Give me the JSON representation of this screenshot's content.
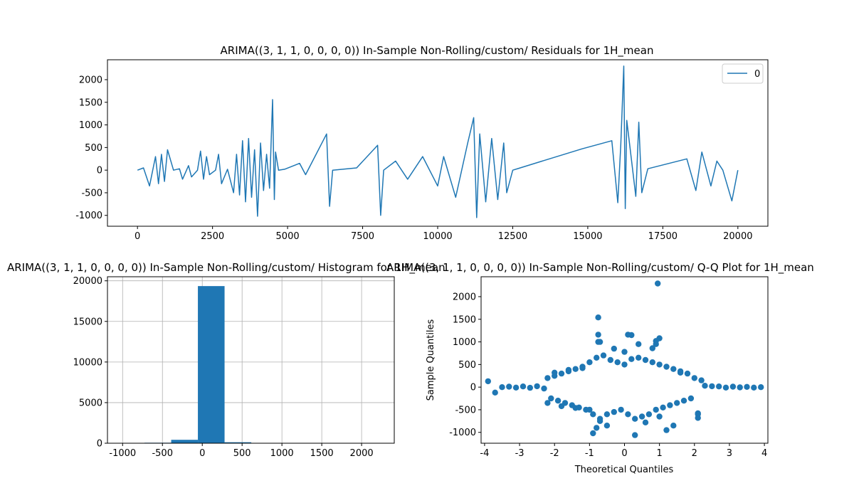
{
  "chart_data": [
    {
      "type": "line",
      "title": "ARIMA((3, 1, 1, 0, 0, 0, 0)) In-Sample Non-Rolling/custom/ Residuals for 1H_mean",
      "xlabel": "",
      "ylabel": "",
      "xlim": [
        -1000,
        21000
      ],
      "ylim": [
        -1240,
        2440
      ],
      "xticks": [
        0,
        2500,
        5000,
        7500,
        10000,
        12500,
        15000,
        17500,
        20000
      ],
      "yticks": [
        -1000,
        -500,
        0,
        500,
        1000,
        1500,
        2000
      ],
      "legend": {
        "placement": "top-right",
        "entries": [
          "0"
        ]
      },
      "series_color": "#1f77b4",
      "series": [
        {
          "name": "0",
          "x": [
            0,
            200,
            400,
            600,
            700,
            800,
            900,
            1000,
            1200,
            1400,
            1500,
            1700,
            1800,
            2000,
            2100,
            2200,
            2300,
            2400,
            2600,
            2700,
            2800,
            3000,
            3200,
            3300,
            3400,
            3500,
            3600,
            3700,
            3800,
            3900,
            4000,
            4100,
            4200,
            4300,
            4400,
            4500,
            4560,
            4600,
            4700,
            4900,
            5400,
            5600,
            6300,
            6400,
            6500,
            7300,
            8000,
            8100,
            8200,
            8600,
            9000,
            9500,
            10000,
            10200,
            10600,
            11000,
            11200,
            11300,
            11400,
            11600,
            11800,
            12000,
            12200,
            12300,
            12500,
            12700,
            14800,
            15800,
            16000,
            16100,
            16200,
            16250,
            16300,
            16600,
            16700,
            16800,
            17000,
            18300,
            18600,
            18800,
            19100,
            19300,
            19500,
            19800,
            20000
          ],
          "y": [
            0,
            50,
            -350,
            300,
            -300,
            350,
            -250,
            450,
            0,
            30,
            -200,
            100,
            -150,
            0,
            420,
            -200,
            300,
            -100,
            0,
            350,
            -300,
            20,
            -500,
            350,
            -550,
            650,
            -700,
            700,
            -600,
            450,
            -1020,
            600,
            -450,
            350,
            -400,
            1560,
            -650,
            400,
            0,
            20,
            150,
            -100,
            800,
            -800,
            0,
            50,
            550,
            -1000,
            0,
            200,
            -200,
            300,
            -350,
            300,
            -600,
            600,
            1160,
            -1050,
            800,
            -700,
            700,
            -650,
            600,
            -500,
            0,
            40,
            470,
            650,
            -720,
            560,
            2300,
            -850,
            1100,
            -580,
            1060,
            -500,
            30,
            250,
            -450,
            400,
            -350,
            200,
            0,
            -680,
            0
          ]
        }
      ]
    },
    {
      "type": "bar",
      "title": "ARIMA((3, 1, 1, 0, 0, 0, 0)) In-Sample Non-Rolling/custom/ Histogram for 1H_mean",
      "xlabel": "",
      "ylabel": "",
      "xlim": [
        -1190,
        2410
      ],
      "ylim": [
        0,
        20500
      ],
      "xticks": [
        -1000,
        -500,
        0,
        500,
        1000,
        1500,
        2000
      ],
      "yticks": [
        0,
        5000,
        10000,
        15000,
        20000
      ],
      "grid": true,
      "bin_edges": [
        -1060,
        -725,
        -390,
        -55,
        280,
        615,
        950,
        1285,
        1620,
        1955,
        2290
      ],
      "counts": [
        10,
        60,
        420,
        19350,
        120,
        15,
        5,
        3,
        1,
        1
      ],
      "bar_color": "#1f77b4"
    },
    {
      "type": "scatter",
      "title": "ARIMA((3, 1, 1, 0, 0, 0, 0)) In-Sample Non-Rolling/custom/ Q-Q Plot for 1H_mean",
      "xlabel": "Theoretical Quantiles",
      "ylabel": "Sample Quantiles",
      "xlim": [
        -4.1,
        4.1
      ],
      "ylim": [
        -1240,
        2440
      ],
      "xticks": [
        -4,
        -3,
        -2,
        -1,
        0,
        1,
        2,
        3,
        4
      ],
      "yticks": [
        -1000,
        -500,
        0,
        500,
        1000,
        1500,
        2000
      ],
      "grid": false,
      "marker_color": "#1f77b4",
      "x": [
        -3.9,
        -3.7,
        -3.5,
        -3.3,
        -3.1,
        -2.9,
        -2.7,
        -2.5,
        -2.3,
        -2.2,
        -2.1,
        -2.0,
        -1.9,
        -1.8,
        -1.7,
        -1.6,
        -1.5,
        -1.4,
        -1.3,
        -1.2,
        -1.1,
        -1.0,
        -0.9,
        -0.8,
        -0.75,
        -0.7,
        -0.6,
        -0.5,
        -0.4,
        -0.3,
        -0.2,
        -0.1,
        0.0,
        0.1,
        0.2,
        0.3,
        0.4,
        0.5,
        0.6,
        0.7,
        0.8,
        0.9,
        0.95,
        1.0,
        1.1,
        1.2,
        1.3,
        1.4,
        1.5,
        1.6,
        1.7,
        1.8,
        1.9,
        2.0,
        2.1,
        2.2,
        2.3,
        2.5,
        2.7,
        2.9,
        3.1,
        3.3,
        3.5,
        3.7,
        3.9,
        -2.2,
        -2.0,
        -1.8,
        -1.6,
        -1.4,
        -1.2,
        -1.0,
        -0.9,
        -0.8,
        -0.7,
        -0.5,
        -0.3,
        0.2,
        0.3,
        0.4,
        0.6,
        0.8,
        0.9,
        1.0,
        1.2,
        1.4,
        1.6,
        2.1,
        2.1,
        -0.75,
        -0.75,
        -0.7,
        0.0,
        0.1,
        0.9,
        1.0
      ],
      "y": [
        130,
        -120,
        0,
        10,
        -10,
        15,
        -15,
        20,
        -30,
        200,
        -250,
        250,
        -300,
        300,
        -350,
        350,
        -400,
        400,
        -450,
        450,
        -500,
        550,
        -600,
        650,
        1540,
        -700,
        700,
        -600,
        600,
        -550,
        550,
        -500,
        500,
        -600,
        620,
        -700,
        650,
        -650,
        600,
        -600,
        550,
        -500,
        2290,
        500,
        -450,
        450,
        -400,
        400,
        -350,
        350,
        -300,
        300,
        -250,
        200,
        -600,
        150,
        30,
        20,
        15,
        -10,
        10,
        -5,
        5,
        -10,
        0,
        -350,
        320,
        -420,
        380,
        -460,
        420,
        -500,
        -1020,
        -900,
        1000,
        -850,
        850,
        1150,
        -1060,
        950,
        -780,
        860,
        1020,
        1080,
        -950,
        -850,
        320,
        -680,
        -580,
        1160,
        1000,
        -750,
        780,
        1160,
        950,
        -650
      ]
    }
  ]
}
